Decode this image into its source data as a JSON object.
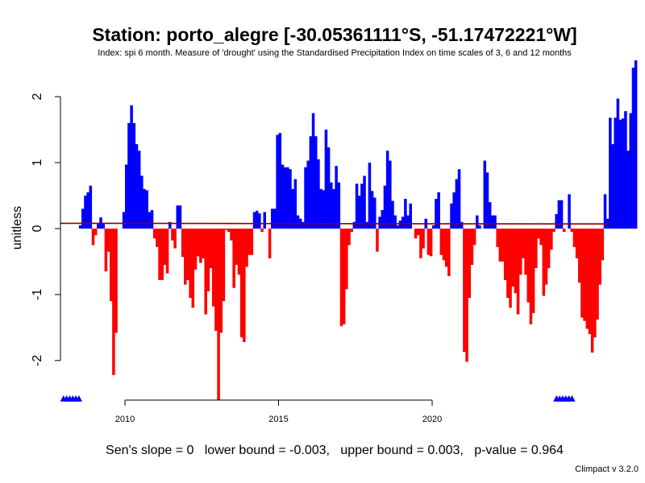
{
  "chart_data": {
    "type": "bar",
    "title": "Station: porto_alegre [-30.05361111°S, -51.17472221°W]",
    "subtitle": "Index: spi 6 month. Measure of 'drought' using the Standardised Precipitation Index on time scales of 3, 6 and 12 months",
    "ylabel": "unitless",
    "xlabel": "",
    "ylim": [
      -2.6,
      2.55
    ],
    "xlim": [
      2007.9,
      2025.8
    ],
    "x_ticks": [
      2010,
      2015,
      2020
    ],
    "y_ticks": [
      -2,
      -1,
      0,
      1,
      2
    ],
    "positive_color": "#0000ff",
    "negative_color": "#ff0000",
    "trend_color": "#8b0000",
    "trend_line": {
      "x": [
        2007.9,
        2025.8
      ],
      "y": [
        0.08,
        0.07
      ]
    },
    "missing_markers": {
      "color": "#0000ff",
      "y": -2.58,
      "x": [
        2008.0,
        2008.1,
        2008.2,
        2008.3,
        2008.4,
        2008.5,
        2024.05,
        2024.15,
        2024.25,
        2024.35,
        2024.45,
        2024.55
      ]
    },
    "start_year": 2008,
    "start_month": 1,
    "values": [
      null,
      null,
      null,
      null,
      null,
      null,
      0.05,
      0.3,
      0.5,
      0.55,
      0.65,
      -0.25,
      -0.1,
      0.08,
      0.17,
      0.08,
      -0.65,
      -0.35,
      -1.1,
      -2.22,
      -1.58,
      0.0,
      0.0,
      0.25,
      0.97,
      1.6,
      1.87,
      1.6,
      1.28,
      1.18,
      0.8,
      0.6,
      0.58,
      0.25,
      0.28,
      -0.15,
      -0.28,
      -0.78,
      -0.78,
      -0.55,
      -0.68,
      0.1,
      -0.18,
      -0.3,
      0.35,
      0.35,
      -0.43,
      -0.85,
      -0.78,
      -1.05,
      -1.2,
      -0.62,
      -0.42,
      -0.52,
      -0.45,
      -1.3,
      -0.95,
      -0.6,
      -1.18,
      -1.55,
      -2.65,
      -1.58,
      -1.1,
      -0.02,
      -0.05,
      -0.18,
      -0.9,
      -0.55,
      -0.7,
      -1.65,
      -1.72,
      -0.58,
      -0.4,
      -0.4,
      0.25,
      0.27,
      0.23,
      -0.05,
      0.25,
      0.0,
      -0.45,
      0.3,
      0.3,
      1.42,
      1.45,
      0.97,
      0.93,
      0.93,
      0.9,
      0.6,
      0.75,
      0.2,
      0.15,
      0.1,
      0.93,
      1.03,
      1.4,
      1.75,
      1.4,
      1.05,
      0.6,
      0.58,
      1.5,
      1.23,
      0.7,
      0.6,
      0.95,
      0.7,
      -1.48,
      -1.45,
      -0.92,
      -0.25,
      -0.05,
      0.1,
      0.68,
      0.5,
      0.68,
      0.8,
      0.1,
      1.0,
      0.57,
      0.47,
      -0.35,
      0.18,
      0.28,
      0.65,
      1.18,
      1.03,
      0.42,
      0.2,
      0.05,
      0.12,
      0.18,
      0.45,
      0.2,
      0.38,
      0.0,
      -0.15,
      -0.1,
      -0.45,
      -0.3,
      0.15,
      -0.4,
      -0.42,
      0.05,
      0.45,
      0.55,
      -0.4,
      -0.48,
      -0.58,
      -0.72,
      0.38,
      0.55,
      0.75,
      0.9,
      0.1,
      -1.87,
      -2.02,
      -1.05,
      -0.55,
      -0.25,
      0.2,
      0.05,
      0.0,
      1.03,
      0.85,
      0.4,
      0.2,
      0.2,
      -0.28,
      -0.5,
      -0.5,
      -0.78,
      -1.05,
      -1.2,
      -0.88,
      -0.98,
      -1.3,
      -0.7,
      -0.45,
      -0.7,
      -1.12,
      -1.45,
      -1.28,
      -0.6,
      -0.15,
      -0.25,
      -1.02,
      -0.85,
      -0.6,
      -0.32,
      -0.05,
      0.22,
      0.43,
      0.43,
      -0.05,
      0.0,
      0.52,
      -0.05,
      -0.28,
      -0.45,
      -0.82,
      -1.35,
      -1.4,
      -1.52,
      -1.6,
      -1.88,
      -1.65,
      -1.38,
      -0.85,
      -0.48,
      0.52,
      0.15,
      1.68,
      1.28,
      1.68,
      1.97,
      1.65,
      1.67,
      1.78,
      1.18,
      1.75,
      2.44,
      2.58
    ]
  },
  "footer_text": "Sen's slope = 0   lower bound = -0.003,   upper bound = 0.003,   p-value = 0.964",
  "version_text": "Climpact v 3.2.0"
}
